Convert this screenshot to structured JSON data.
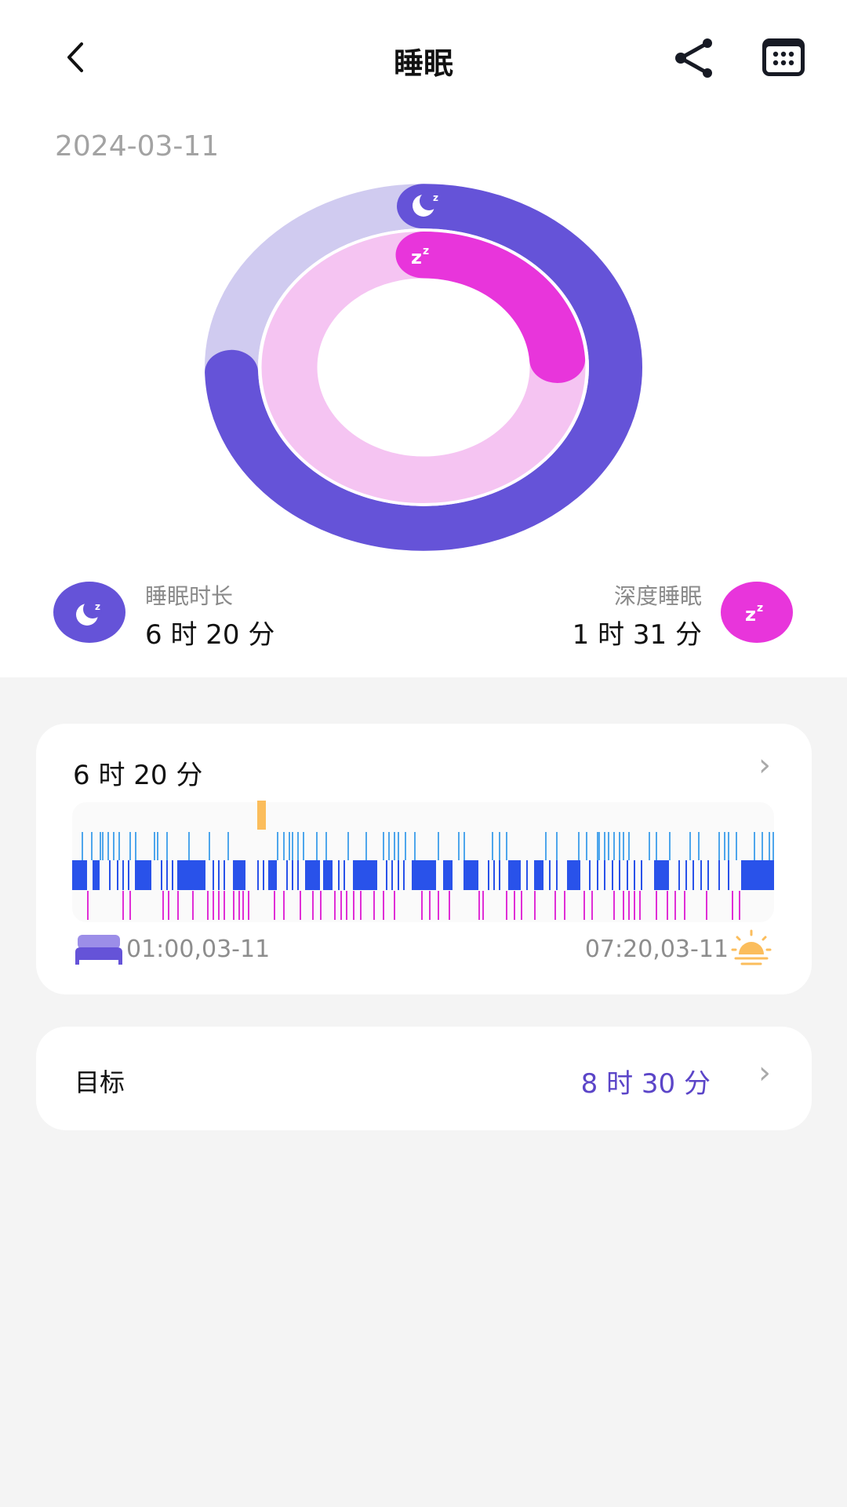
{
  "header": {
    "title": "睡眠",
    "back_icon": "chevron-left-icon",
    "share_icon": "share-icon",
    "calendar_icon": "calendar-icon"
  },
  "date": "2024-03-11",
  "rings": {
    "sleep_progress": 0.745,
    "deep_progress": 0.239,
    "colors": {
      "sleep": "#6553d8",
      "sleep_track": "#d0cbf0",
      "deep": "#e835db",
      "deep_track": "#f5c4f2"
    }
  },
  "summary": {
    "duration": {
      "label": "睡眠时长",
      "value": "6 时 20 分",
      "icon": "moon-icon"
    },
    "deep": {
      "label": "深度睡眠",
      "value": "1 时 31 分",
      "icon": "zz-icon"
    }
  },
  "detail_card": {
    "title": "6 时 20 分",
    "start": "01:00,03-11",
    "end": "07:20,03-11",
    "start_icon": "bed-icon",
    "end_icon": "sunrise-icon"
  },
  "chart_data": {
    "type": "timeline",
    "x_range": [
      "01:00",
      "07:20"
    ],
    "rows": [
      {
        "color": "#fbbd5c",
        "segments": [
          [
            "02:40",
            "02:45"
          ]
        ]
      },
      {
        "color": "#4ea6ec",
        "marks": [
          "01:05",
          "01:10",
          "01:15",
          "01:16",
          "01:19",
          "01:22",
          "01:25",
          "01:31",
          "01:34",
          "01:44",
          "01:46",
          "01:51",
          "02:03",
          "02:14",
          "02:24",
          "02:51",
          "02:54",
          "02:57",
          "02:59",
          "03:02",
          "03:05",
          "03:12",
          "03:17",
          "03:29",
          "03:39",
          "03:48",
          "03:51",
          "03:54",
          "03:56",
          "04:00",
          "04:05",
          "04:18",
          "04:29",
          "04:32",
          "04:47",
          "04:51",
          "04:55",
          "05:16",
          "05:22",
          "05:34",
          "05:38",
          "05:44",
          "05:45",
          "05:48",
          "05:50",
          "05:53",
          "05:56",
          "05:58",
          "06:01",
          "06:12",
          "06:16",
          "06:23",
          "06:34",
          "06:39",
          "06:50",
          "06:53",
          "06:55",
          "06:59",
          "07:09",
          "07:13",
          "07:17",
          "07:19"
        ]
      },
      {
        "color": "#2952ea",
        "segments": [
          [
            "01:00",
            "01:08"
          ],
          [
            "01:11",
            "01:15"
          ],
          [
            "01:34",
            "01:43"
          ],
          [
            "01:57",
            "02:12"
          ],
          [
            "02:27",
            "02:34"
          ],
          [
            "02:46",
            "02:51"
          ],
          [
            "03:06",
            "03:14"
          ],
          [
            "03:16",
            "03:21"
          ],
          [
            "03:32",
            "03:45"
          ],
          [
            "04:04",
            "04:17"
          ],
          [
            "04:21",
            "04:26"
          ],
          [
            "04:32",
            "04:40"
          ],
          [
            "04:56",
            "05:03"
          ],
          [
            "05:10",
            "05:15"
          ],
          [
            "05:28",
            "05:35"
          ],
          [
            "06:15",
            "06:23"
          ],
          [
            "07:02",
            "07:20"
          ]
        ],
        "marks": [
          "01:20",
          "01:24",
          "01:27",
          "01:30",
          "01:48",
          "01:51",
          "01:54",
          "02:16",
          "02:19",
          "02:22",
          "02:40",
          "02:43",
          "02:56",
          "02:59",
          "03:02",
          "03:24",
          "03:27",
          "03:50",
          "03:53",
          "03:56",
          "03:59",
          "04:45",
          "04:48",
          "04:51",
          "05:06",
          "05:18",
          "05:22",
          "05:40",
          "05:44",
          "05:48",
          "05:52",
          "05:56",
          "06:00",
          "06:04",
          "06:08",
          "06:28",
          "06:32",
          "06:36",
          "06:40",
          "06:44",
          "06:50",
          "06:55"
        ]
      },
      {
        "color": "#e02ed6",
        "marks": [
          "01:08",
          "01:27",
          "01:31",
          "01:49",
          "01:52",
          "01:57",
          "02:05",
          "02:13",
          "02:16",
          "02:19",
          "02:22",
          "02:27",
          "02:30",
          "02:32",
          "02:35",
          "02:49",
          "02:54",
          "03:03",
          "03:10",
          "03:14",
          "03:22",
          "03:25",
          "03:28",
          "03:32",
          "03:36",
          "03:43",
          "03:48",
          "03:54",
          "04:09",
          "04:13",
          "04:18",
          "04:24",
          "04:40",
          "04:42",
          "04:55",
          "04:59",
          "05:03",
          "05:10",
          "05:21",
          "05:26",
          "05:37",
          "05:41",
          "05:53",
          "05:58",
          "06:01",
          "06:04",
          "06:07",
          "06:16",
          "06:22",
          "06:26",
          "06:31",
          "06:43",
          "06:57",
          "07:01"
        ]
      }
    ]
  },
  "goal_card": {
    "label": "目标",
    "value": "8 时 30 分",
    "value_color": "#5b45c8"
  }
}
